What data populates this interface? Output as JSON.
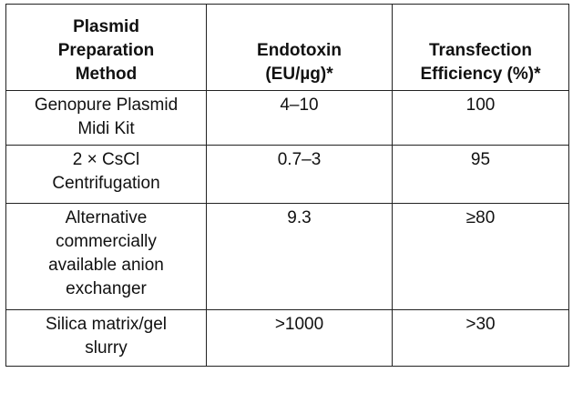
{
  "table": {
    "headers": [
      [
        "Plasmid",
        "Preparation",
        "Method"
      ],
      [
        "Endotoxin",
        "(EU/µg)*"
      ],
      [
        "Transfection",
        "Efficiency (%)*"
      ]
    ],
    "rows": [
      {
        "method": [
          "Genopure Plasmid",
          "Midi Kit"
        ],
        "endotoxin": "4–10",
        "efficiency": "100"
      },
      {
        "method": [
          "2 × CsCl",
          "Centrifugation"
        ],
        "endotoxin": "0.7–3",
        "efficiency": "95"
      },
      {
        "method": [
          "Alternative",
          "commercially",
          "available anion",
          "exchanger"
        ],
        "endotoxin": "9.3",
        "efficiency": "≥80"
      },
      {
        "method": [
          "Silica matrix/gel",
          "slurry"
        ],
        "endotoxin": ">1000",
        "efficiency": ">30"
      }
    ]
  }
}
